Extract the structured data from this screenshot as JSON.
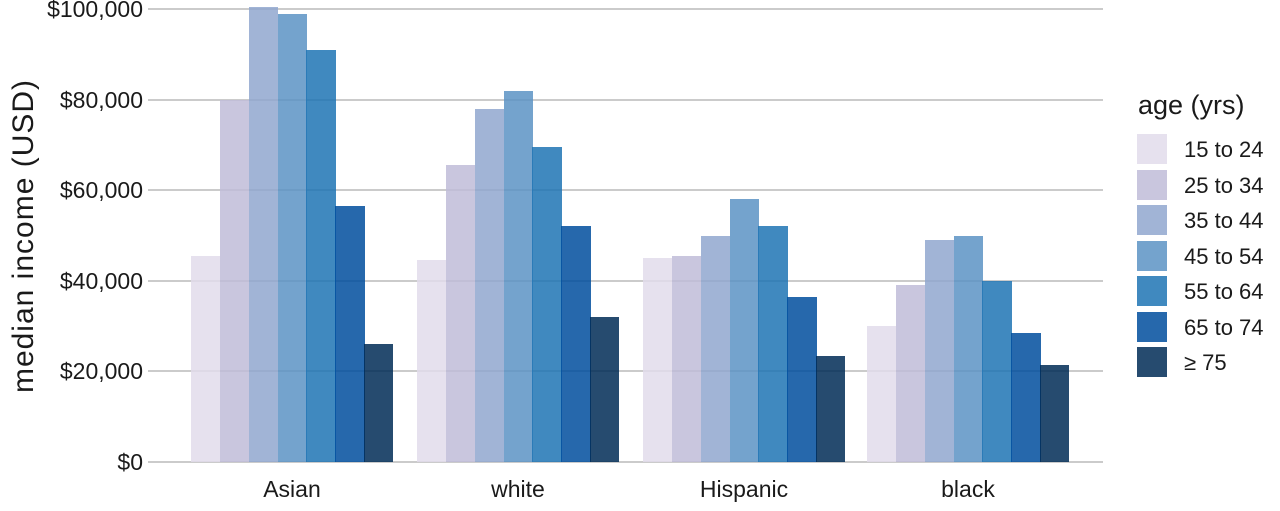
{
  "chart_data": {
    "type": "bar",
    "title": "",
    "xlabel": "",
    "ylabel": "median income (USD)",
    "ylim": [
      0,
      100000
    ],
    "grid": "horizontal gridlines at every $20,000, drawn behind semi-transparent bars",
    "categories": [
      "Asian",
      "white",
      "Hispanic",
      "black"
    ],
    "yticks": [
      {
        "value": 0,
        "label": "$0"
      },
      {
        "value": 20000,
        "label": "$20,000"
      },
      {
        "value": 40000,
        "label": "$40,000"
      },
      {
        "value": 60000,
        "label": "$60,000"
      },
      {
        "value": 80000,
        "label": "$80,000"
      },
      {
        "value": 100000,
        "label": "$100,000"
      }
    ],
    "legend": {
      "title": "age (yrs)",
      "position": "right"
    },
    "series": [
      {
        "name": "15 to 24",
        "color": "#E2DCEB",
        "values": [
          45500,
          44500,
          45000,
          30000
        ]
      },
      {
        "name": "25 to 34",
        "color": "#BFBCD8",
        "values": [
          80000,
          65500,
          45500,
          39000
        ]
      },
      {
        "name": "35 to 44",
        "color": "#90A7CF",
        "values": [
          100500,
          78000,
          50000,
          49000
        ]
      },
      {
        "name": "45 to 54",
        "color": "#5C93C4",
        "values": [
          99000,
          82000,
          58000,
          50000
        ]
      },
      {
        "name": "55 to 64",
        "color": "#1F74B4",
        "values": [
          91000,
          69500,
          52000,
          40000
        ]
      },
      {
        "name": "65 to 74",
        "color": "#004D9D",
        "values": [
          56500,
          52000,
          36500,
          28500
        ]
      },
      {
        "name": "≥ 75",
        "color": "#002C56",
        "values": [
          26000,
          32000,
          23500,
          21500
        ]
      }
    ],
    "bar_opacity": 0.85,
    "gridline_color": "#CBCBCB",
    "text_color": "#1a1a1a"
  }
}
